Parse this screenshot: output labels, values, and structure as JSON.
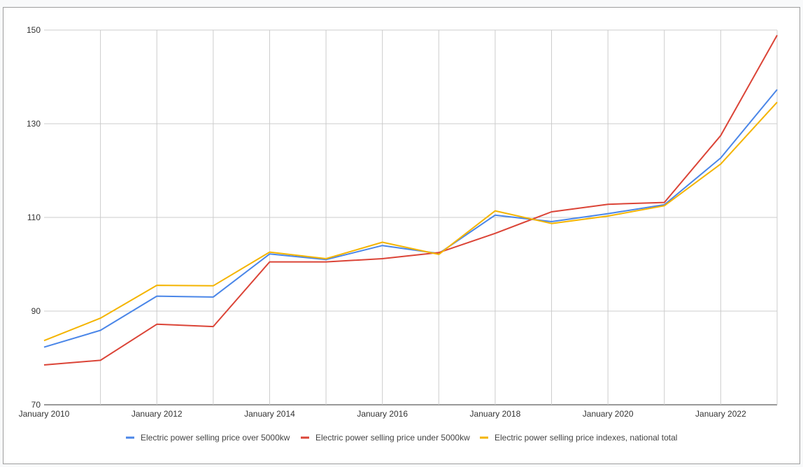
{
  "chart_data": {
    "type": "line",
    "title": "",
    "xlabel": "",
    "ylabel": "",
    "x": [
      2010,
      2011,
      2012,
      2013,
      2014,
      2015,
      2016,
      2017,
      2018,
      2019,
      2020,
      2021,
      2022,
      2023
    ],
    "x_tick_labels": [
      "January 2010",
      "January 2012",
      "January 2014",
      "January 2016",
      "January 2018",
      "January 2020",
      "January 2022"
    ],
    "x_tick_values": [
      2010,
      2012,
      2014,
      2016,
      2018,
      2020,
      2022
    ],
    "xlim": [
      2010,
      2023
    ],
    "ylim": [
      70,
      150
    ],
    "y_ticks": [
      70,
      90,
      110,
      130,
      150
    ],
    "grid": true,
    "legend_position": "bottom",
    "series": [
      {
        "name": "Electric power selling price over 5000kw",
        "color": "#4a86e8",
        "values": [
          82.3,
          85.9,
          93.2,
          93.0,
          102.2,
          101.0,
          104.0,
          102.3,
          110.5,
          109.1,
          110.8,
          112.7,
          122.7,
          137.3
        ]
      },
      {
        "name": "Electric power selling price under 5000kw",
        "color": "#db4437",
        "values": [
          78.5,
          79.5,
          87.2,
          86.7,
          100.5,
          100.5,
          101.2,
          102.5,
          106.6,
          111.2,
          112.8,
          113.2,
          127.5,
          148.9
        ]
      },
      {
        "name": "Electric power selling price indexes, national total",
        "color": "#f4b400",
        "values": [
          83.7,
          88.5,
          95.5,
          95.4,
          102.6,
          101.2,
          104.7,
          102.1,
          111.4,
          108.7,
          110.3,
          112.5,
          121.4,
          134.6
        ]
      }
    ]
  }
}
